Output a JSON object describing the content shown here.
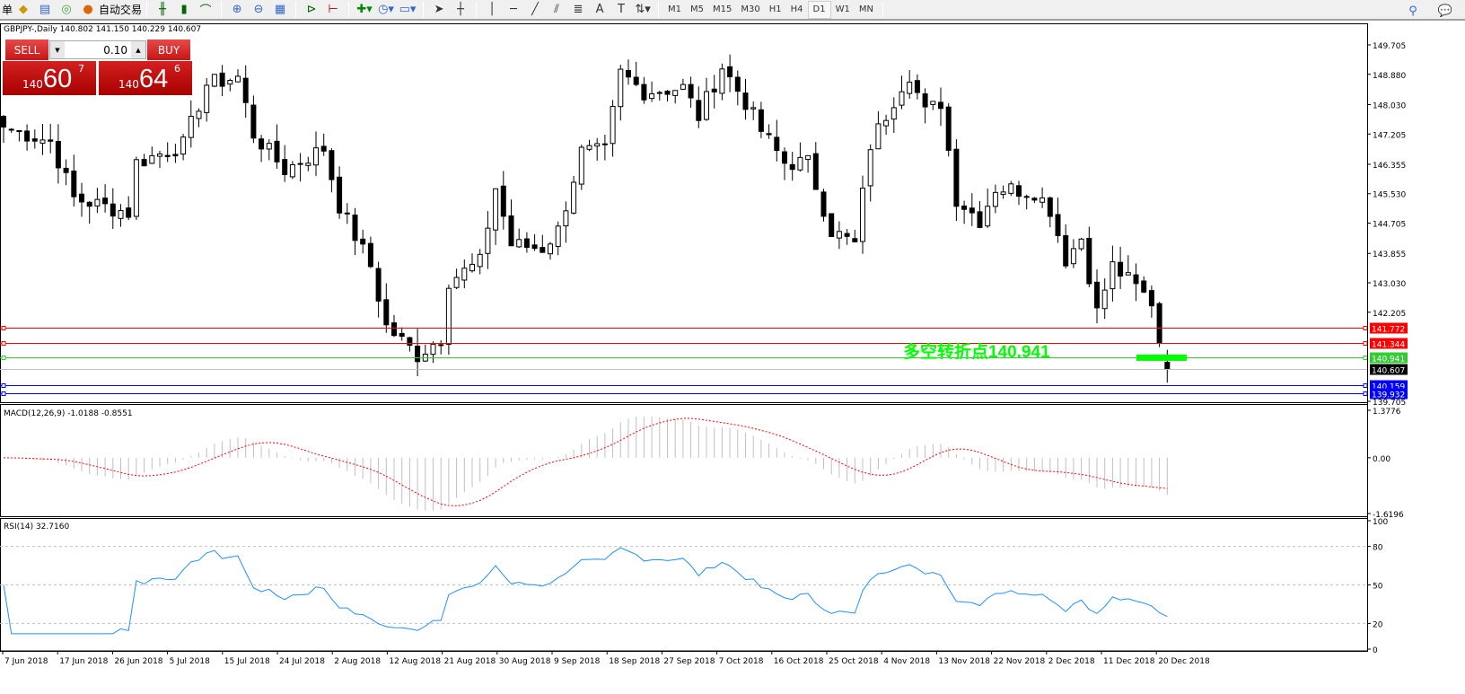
{
  "toolbar": {
    "left_cut": "单",
    "auto_trading": "自动交易",
    "timeframes": [
      "M1",
      "M5",
      "M15",
      "M30",
      "H1",
      "H4",
      "D1",
      "W1",
      "MN"
    ],
    "active_timeframe": "D1"
  },
  "chart": {
    "symbol_header": "GBPJPY-,Daily  140.802 141.150 140.229 140.607",
    "last": {
      "open": 140.802,
      "high": 141.15,
      "low": 140.229,
      "close": 140.607
    },
    "price_axis": [
      "149.705",
      "148.880",
      "148.030",
      "147.205",
      "146.355",
      "145.530",
      "144.705",
      "143.855",
      "143.030",
      "142.205",
      "139.705"
    ],
    "price_range": [
      139.705,
      149.705
    ],
    "close_keypoints": [
      [
        0,
        147.4
      ],
      [
        6,
        147.0
      ],
      [
        9,
        145.4
      ],
      [
        16,
        145.0
      ],
      [
        17,
        146.4
      ],
      [
        23,
        146.9
      ],
      [
        26,
        148.6
      ],
      [
        30,
        148.8
      ],
      [
        32,
        147.2
      ],
      [
        36,
        146.2
      ],
      [
        41,
        146.8
      ],
      [
        43,
        145.2
      ],
      [
        47,
        143.5
      ],
      [
        49,
        141.8
      ],
      [
        53,
        141.0
      ],
      [
        56,
        141.5
      ],
      [
        57,
        143.1
      ],
      [
        61,
        143.6
      ],
      [
        63,
        145.7
      ],
      [
        65,
        144.1
      ],
      [
        69,
        144.0
      ],
      [
        71,
        144.5
      ],
      [
        74,
        146.7
      ],
      [
        77,
        146.7
      ],
      [
        79,
        148.9
      ],
      [
        82,
        148.4
      ],
      [
        87,
        148.5
      ],
      [
        89,
        147.7
      ],
      [
        92,
        149.1
      ],
      [
        95,
        148.1
      ],
      [
        97,
        147.3
      ],
      [
        100,
        146.4
      ],
      [
        103,
        146.4
      ],
      [
        106,
        144.5
      ],
      [
        109,
        144.1
      ],
      [
        111,
        146.9
      ],
      [
        115,
        148.6
      ],
      [
        116,
        148.9
      ],
      [
        118,
        147.8
      ],
      [
        120,
        148.1
      ],
      [
        122,
        145.4
      ],
      [
        125,
        144.8
      ],
      [
        127,
        145.7
      ],
      [
        132,
        145.6
      ],
      [
        134,
        145.1
      ],
      [
        136,
        143.7
      ],
      [
        138,
        144.3
      ],
      [
        140,
        142.2
      ],
      [
        142,
        143.5
      ],
      [
        144,
        143.1
      ],
      [
        147,
        142.5
      ],
      [
        148,
        141.4
      ],
      [
        149,
        140.607
      ]
    ],
    "levels": [
      {
        "price": "141.772",
        "color": "#ff0000"
      },
      {
        "price": "141.344",
        "color": "#ff0000"
      },
      {
        "price": "140.941",
        "color": "#33cc33"
      },
      {
        "price": "140.607",
        "color": "#000000",
        "current": true
      },
      {
        "price": "140.159",
        "color": "#0000ff"
      },
      {
        "price": "139.932",
        "color": "#0000ff"
      }
    ],
    "annotation": "多空转折点140.941",
    "annotation_color": "#00ff00"
  },
  "trade_panel": {
    "sell_label": "SELL",
    "buy_label": "BUY",
    "lot": "0.10",
    "sell": {
      "small": "140",
      "big": "60",
      "sup": "7"
    },
    "buy": {
      "small": "140",
      "big": "64",
      "sup": "6"
    }
  },
  "macd": {
    "label": "MACD(12,26,9) -1.0188 -0.8551",
    "axis": [
      "1.3776",
      "0.00",
      "-1.6196"
    ],
    "range": [
      -1.6196,
      1.3776
    ],
    "signal_color": "#ff0000",
    "hist_color": "#c0c0c0"
  },
  "rsi": {
    "label": "RSI(14) 32.7160",
    "axis": [
      "100",
      "80",
      "50",
      "20",
      "0"
    ],
    "levels": [
      80,
      50,
      20
    ],
    "line_color": "#1e90ff"
  },
  "time_axis": [
    "7 Jun 2018",
    "17 Jun 2018",
    "26 Jun 2018",
    "5 Jul 2018",
    "15 Jul 2018",
    "24 Jul 2018",
    "2 Aug 2018",
    "12 Aug 2018",
    "21 Aug 2018",
    "30 Aug 2018",
    "9 Sep 2018",
    "18 Sep 2018",
    "27 Sep 2018",
    "7 Oct 2018",
    "16 Oct 2018",
    "25 Oct 2018",
    "4 Nov 2018",
    "13 Nov 2018",
    "22 Nov 2018",
    "2 Dec 2018",
    "11 Dec 2018",
    "20 Dec 2018"
  ]
}
